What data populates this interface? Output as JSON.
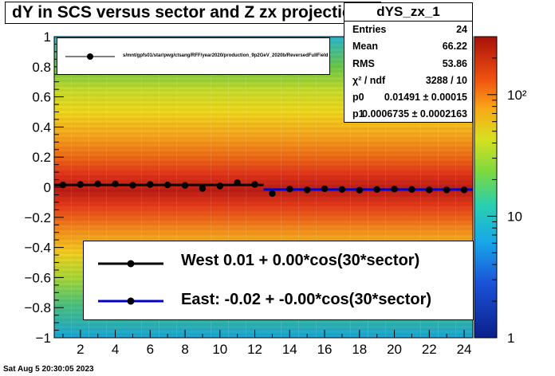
{
  "title": "dY in SCS versus sector and Z zx projection",
  "stats": {
    "name": "dYS_zx_1",
    "rows": [
      {
        "label": "Entries",
        "value": "24"
      },
      {
        "label": "Mean",
        "value": "66.22"
      },
      {
        "label": "RMS",
        "value": "53.86"
      },
      {
        "label": "χ² / ndf",
        "value": "3288 / 10"
      },
      {
        "label": "p0",
        "value": "0.01491 ± 0.00015"
      },
      {
        "label": "p1",
        "value": "0.0006735 ± 0.0002163"
      }
    ]
  },
  "legend_top": {
    "entry": "s/mnt/gpfs01/star/pwg/ctsang/RFF/year2020/production_9p2GeV_2020b/ReversedFullField"
  },
  "legend_bottom": {
    "west": "West  0.01 +  0.00*cos(30*sector)",
    "east": "East: -0.02 + -0.00*cos(30*sector)"
  },
  "date_stamp": "Sat Aug  5 20:30:05 2023",
  "colors": {
    "west_fit": "#000000",
    "east_fit": "#0000cc",
    "markers": "#000000"
  },
  "chart_data": {
    "type": "scatter",
    "xlim": [
      0.5,
      24.5
    ],
    "ylim": [
      -1,
      1
    ],
    "x_ticks": [
      "2",
      "4",
      "6",
      "8",
      "10",
      "12",
      "14",
      "16",
      "18",
      "20",
      "22",
      "24"
    ],
    "y_ticks": [
      "−1",
      "−0.8",
      "−0.6",
      "−0.4",
      "−0.2",
      "0",
      "0.2",
      "0.4",
      "0.6",
      "0.8",
      "1"
    ],
    "colorbar": {
      "scale": "log",
      "min": 1,
      "max": 300,
      "ticks": [
        "1",
        "10",
        "10²"
      ]
    },
    "series": [
      {
        "name": "West",
        "x": [
          1,
          2,
          3,
          4,
          5,
          6,
          7,
          8,
          9,
          10,
          11,
          12
        ],
        "y": [
          0.015,
          0.018,
          0.022,
          0.022,
          0.013,
          0.018,
          0.015,
          0.012,
          -0.008,
          0.008,
          0.03,
          0.018
        ]
      },
      {
        "name": "East",
        "x": [
          13,
          14,
          15,
          16,
          17,
          18,
          19,
          20,
          21,
          22,
          23,
          24
        ],
        "y": [
          -0.042,
          -0.012,
          -0.018,
          -0.01,
          -0.015,
          -0.02,
          -0.015,
          -0.012,
          -0.015,
          -0.018,
          -0.018,
          -0.018
        ]
      }
    ],
    "fits": [
      {
        "name": "West",
        "x_range": [
          0.5,
          12.5
        ],
        "y": 0.015
      },
      {
        "name": "East",
        "x_range": [
          12.5,
          24.5
        ],
        "y": -0.015
      }
    ]
  }
}
